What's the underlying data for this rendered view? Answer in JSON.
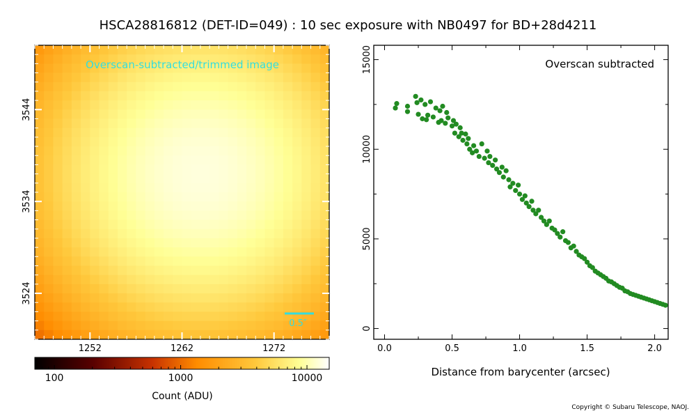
{
  "figure_title": "HSCA28816812 (DET-ID=049) :  10 sec exposure with NB0497 for BD+28d4211",
  "copyright": "Copyright © Subaru Telescope, NAOJ.",
  "chart_data": [
    {
      "type": "heatmap",
      "annotation": "Overscan-subtracted/trimmed image",
      "scale_bar_label": "0.5″",
      "x_ticks": [
        "1252",
        "1262",
        "1272"
      ],
      "y_ticks": [
        "3524",
        "3534",
        "3544"
      ],
      "x_tick_values": [
        1252,
        1262,
        1272
      ],
      "y_tick_values": [
        3524,
        3534,
        3544
      ],
      "x_range": [
        1246,
        1278
      ],
      "y_range": [
        3519,
        3551
      ],
      "grid_size": 32,
      "peak_pixel": [
        1264,
        3537
      ],
      "peak_count": 12500,
      "min_count": 70,
      "colormap": "afmhot",
      "colorbar": {
        "label": "Count (ADU)",
        "scale": "log",
        "range": [
          70,
          15000
        ],
        "ticks": [
          "100",
          "1000",
          "10000"
        ],
        "tick_values": [
          100,
          1000,
          10000
        ]
      }
    },
    {
      "type": "scatter",
      "annotation": "Overscan subtracted",
      "xlabel": "Distance from barycenter (arcsec)",
      "ylabel": "",
      "xlim": [
        -0.08,
        2.1
      ],
      "ylim": [
        -600,
        15800
      ],
      "x_ticks": [
        "0.0",
        "0.5",
        "1.0",
        "1.5",
        "2.0"
      ],
      "x_tick_values": [
        0.0,
        0.5,
        1.0,
        1.5,
        2.0
      ],
      "y_ticks": [
        "0",
        "5000",
        "10000",
        "15000"
      ],
      "y_tick_values": [
        0,
        5000,
        10000,
        15000
      ],
      "point_color": "#228B22",
      "series": [
        {
          "x": [
            0.08,
            0.09,
            0.17,
            0.17,
            0.23,
            0.24,
            0.25,
            0.27,
            0.28,
            0.3,
            0.31,
            0.32,
            0.34,
            0.36,
            0.38,
            0.4,
            0.41,
            0.42,
            0.43,
            0.45,
            0.46,
            0.47,
            0.5,
            0.51,
            0.52,
            0.53,
            0.55,
            0.56,
            0.57,
            0.58,
            0.6,
            0.61,
            0.62,
            0.63,
            0.65,
            0.66,
            0.68,
            0.7,
            0.72,
            0.74,
            0.76,
            0.77,
            0.78,
            0.8,
            0.82,
            0.83,
            0.85,
            0.87,
            0.88,
            0.9,
            0.92,
            0.93,
            0.95,
            0.97,
            0.99,
            1.0,
            1.02,
            1.04,
            1.05,
            1.07,
            1.09,
            1.1,
            1.12,
            1.14,
            1.16,
            1.18,
            1.2,
            1.22,
            1.24,
            1.26,
            1.28,
            1.3,
            1.32,
            1.34,
            1.36,
            1.38,
            1.4,
            1.42,
            1.44,
            1.46,
            1.48,
            1.5,
            1.52,
            1.54,
            1.56,
            1.58,
            1.6,
            1.62,
            1.64,
            1.66,
            1.68,
            1.7,
            1.72,
            1.74,
            1.76,
            1.78,
            1.8,
            1.82,
            1.84,
            1.86,
            1.88,
            1.9,
            1.92,
            1.94,
            1.96,
            1.98,
            2.0,
            2.02,
            2.04,
            2.06,
            2.08
          ],
          "y": [
            12300,
            12550,
            12100,
            12400,
            12950,
            12600,
            11950,
            12750,
            11700,
            12500,
            11650,
            11900,
            12650,
            11800,
            12300,
            11500,
            12150,
            11600,
            12400,
            11450,
            12050,
            11750,
            11300,
            11600,
            10900,
            11400,
            10700,
            11200,
            10900,
            10500,
            10850,
            10300,
            10600,
            10000,
            9800,
            10200,
            9900,
            9600,
            10300,
            9500,
            9900,
            9250,
            9600,
            9100,
            9400,
            8900,
            8700,
            9000,
            8450,
            8800,
            8300,
            7900,
            8100,
            7700,
            8000,
            7500,
            7200,
            7400,
            7000,
            6800,
            7100,
            6600,
            6400,
            6600,
            6200,
            6000,
            5800,
            6000,
            5600,
            5500,
            5300,
            5100,
            5400,
            4900,
            4800,
            4500,
            4600,
            4300,
            4100,
            4000,
            3900,
            3700,
            3500,
            3400,
            3200,
            3100,
            3000,
            2900,
            2800,
            2650,
            2600,
            2500,
            2400,
            2300,
            2250,
            2100,
            2050,
            1950,
            1900,
            1850,
            1800,
            1750,
            1700,
            1650,
            1600,
            1550,
            1500,
            1450,
            1400,
            1350,
            1300
          ]
        }
      ]
    }
  ]
}
